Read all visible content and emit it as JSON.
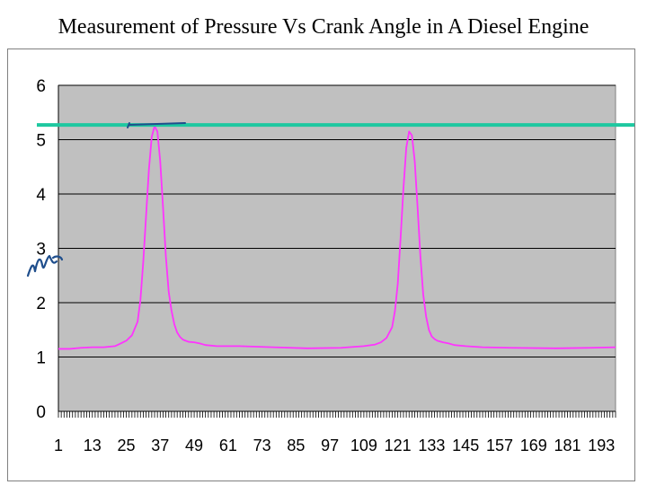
{
  "title": "Measurement of Pressure Vs Crank Angle in A Diesel Engine",
  "colors": {
    "plot_background": "#C0C0C0",
    "series": "#FF33FF",
    "gridline": "#000000",
    "reference_line": "#1EC8A0",
    "annotation_ink": "#1F4E8C"
  },
  "annotations": {
    "reference_line": "horizontal teal line at peak level",
    "handwriting": "handwritten scribble near the y-axis and a short stroke at the first peak"
  },
  "chart_data": {
    "type": "line",
    "title": "Measurement of Pressure Vs Crank Angle in A Diesel Engine",
    "xlabel": "",
    "ylabel": "",
    "ylim": [
      0,
      6
    ],
    "yticks": [
      0,
      1,
      2,
      3,
      4,
      5,
      6
    ],
    "xlim": [
      1,
      198
    ],
    "xticks": [
      1,
      13,
      25,
      37,
      49,
      61,
      73,
      85,
      97,
      109,
      121,
      133,
      145,
      157,
      169,
      181,
      193
    ],
    "grid": "horizontal",
    "legend": "none",
    "series": [
      {
        "x": [
          1,
          5,
          9,
          13,
          17,
          21,
          23,
          25,
          27,
          29,
          30,
          31,
          32,
          33,
          34,
          35,
          36,
          37,
          38,
          39,
          40,
          41,
          42,
          43,
          44,
          45,
          46,
          47,
          49,
          51,
          53,
          57,
          65,
          77,
          89,
          101,
          109,
          113,
          115,
          117,
          119,
          120,
          121,
          122,
          123,
          124,
          125,
          126,
          127,
          128,
          129,
          130,
          131,
          132,
          133,
          134,
          135,
          137,
          139,
          141,
          145,
          151,
          161,
          177,
          189,
          198
        ],
        "values": [
          1.15,
          1.15,
          1.17,
          1.18,
          1.18,
          1.2,
          1.25,
          1.3,
          1.4,
          1.65,
          2.05,
          2.75,
          3.6,
          4.45,
          5.05,
          5.25,
          5.15,
          4.6,
          3.75,
          2.85,
          2.2,
          1.85,
          1.6,
          1.45,
          1.37,
          1.32,
          1.3,
          1.28,
          1.27,
          1.25,
          1.22,
          1.2,
          1.2,
          1.18,
          1.16,
          1.17,
          1.2,
          1.23,
          1.27,
          1.35,
          1.55,
          1.85,
          2.35,
          3.2,
          4.1,
          4.85,
          5.15,
          5.08,
          4.6,
          3.75,
          2.85,
          2.15,
          1.75,
          1.5,
          1.38,
          1.33,
          1.3,
          1.27,
          1.25,
          1.22,
          1.2,
          1.18,
          1.17,
          1.16,
          1.17,
          1.18
        ]
      }
    ]
  }
}
